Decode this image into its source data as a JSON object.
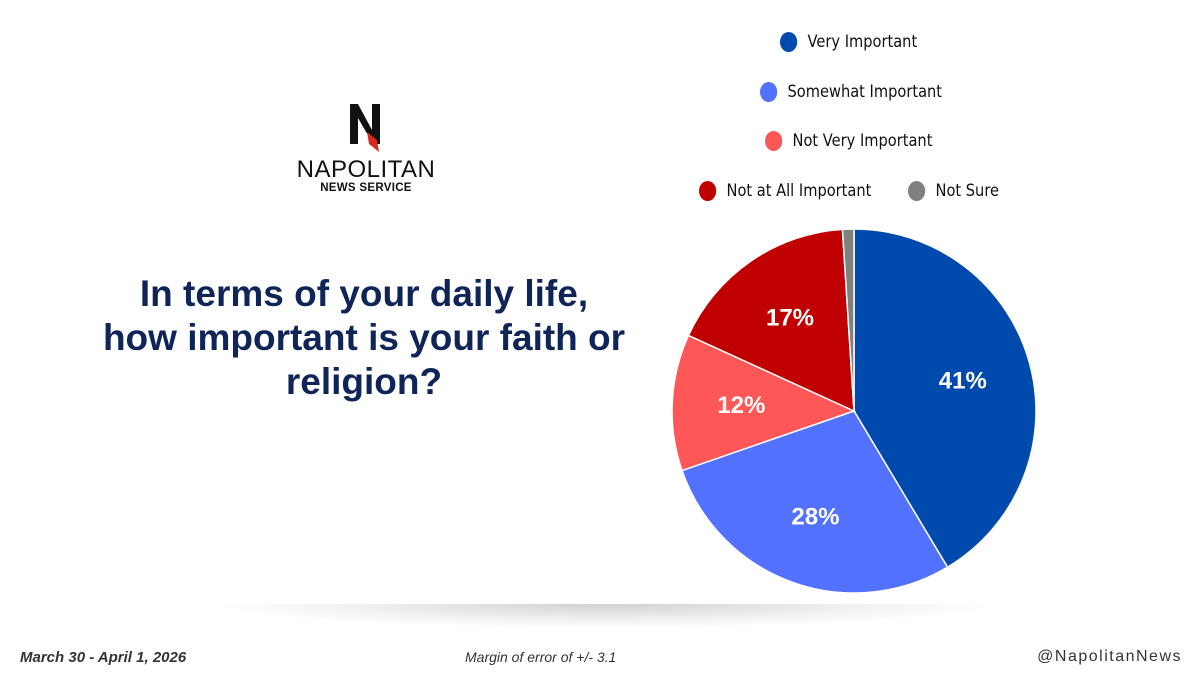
{
  "logo": {
    "name": "NAPOLITAN",
    "subtitle": "NEWS SERVICE"
  },
  "question": "In terms of your daily life, how important is your faith or religion?",
  "footer": {
    "date": "March 30 - April 1, 2026",
    "margin": "Margin of error of +/- 3.1",
    "handle": "@NapolitanNews"
  },
  "colors": {
    "title": "#0f2558",
    "logo_accent": "#d52b1e"
  },
  "chart_data": {
    "type": "pie",
    "legend_position": "top-right",
    "slices": [
      {
        "label": "Very Important",
        "value": 41,
        "display": "41%",
        "color": "#004aad"
      },
      {
        "label": "Somewhat Important",
        "value": 28,
        "display": "28%",
        "color": "#5271ff"
      },
      {
        "label": "Not Very Important",
        "value": 12,
        "display": "12%",
        "color": "#ff5757"
      },
      {
        "label": "Not at All Important",
        "value": 17,
        "display": "17%",
        "color": "#c00000"
      },
      {
        "label": "Not Sure",
        "value": 1,
        "display": "",
        "color": "#808080"
      }
    ]
  }
}
